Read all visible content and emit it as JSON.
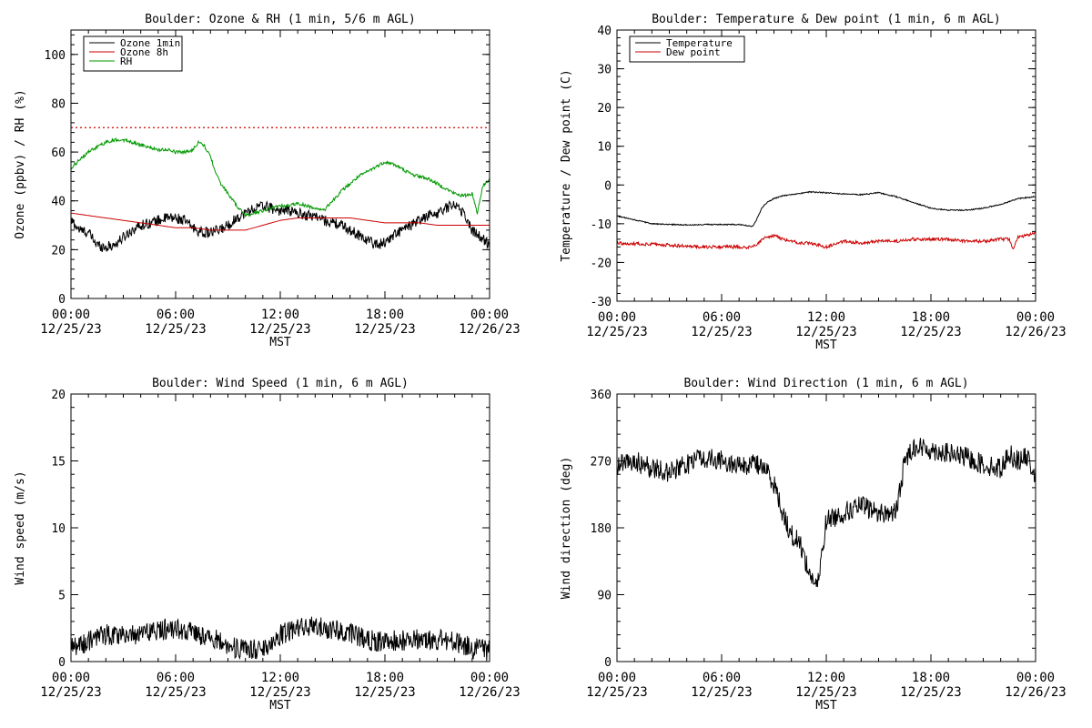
{
  "chart_data": [
    {
      "type": "line",
      "title": "Boulder: Ozone & RH (1 min, 5/6 m AGL)",
      "xlabel": "MST",
      "ylabel": "Ozone (ppbv) / RH (%)",
      "xlim": [
        0,
        24
      ],
      "ylim": [
        0,
        110
      ],
      "yticks": [
        0,
        20,
        40,
        60,
        80,
        100
      ],
      "xticks": [
        0,
        6,
        12,
        18,
        24
      ],
      "xtick_labels": [
        [
          "00:00",
          "12/25/23"
        ],
        [
          "06:00",
          "12/25/23"
        ],
        [
          "12:00",
          "12/25/23"
        ],
        [
          "18:00",
          "12/25/23"
        ],
        [
          "00:00",
          "12/26/23"
        ]
      ],
      "legend": {
        "placement": "top-left",
        "entries": [
          {
            "label": "Ozone 1min",
            "color": "#000000"
          },
          {
            "label": "Ozone 8h",
            "color": "#cc0000"
          },
          {
            "label": "RH",
            "color": "#009900"
          }
        ]
      },
      "reference_line": {
        "y": 70,
        "style": "dotted",
        "color": "#cc0000"
      },
      "series": [
        {
          "name": "Ozone 1min",
          "color": "#000000",
          "noise": 2.2,
          "x": [
            0,
            0.5,
            1,
            1.5,
            2,
            2.5,
            3,
            3.5,
            4,
            4.5,
            5,
            5.5,
            6,
            6.5,
            7,
            7.5,
            8,
            8.5,
            9,
            9.5,
            10,
            10.5,
            11,
            11.5,
            12,
            12.5,
            13,
            13.5,
            14,
            14.5,
            15,
            15.5,
            16,
            16.5,
            17,
            17.5,
            18,
            18.5,
            19,
            19.5,
            20,
            20.5,
            21,
            21.5,
            22,
            22.5,
            23,
            23.5,
            24
          ],
          "y": [
            32,
            28,
            27,
            22,
            21,
            22,
            25,
            28,
            30,
            31,
            32,
            33,
            33,
            32,
            29,
            27,
            27,
            28,
            30,
            33,
            35,
            37,
            38,
            37,
            36,
            36,
            35,
            34,
            34,
            32,
            31,
            30,
            28,
            26,
            24,
            22,
            23,
            26,
            28,
            30,
            32,
            34,
            35,
            37,
            39,
            35,
            28,
            25,
            22
          ]
        },
        {
          "name": "Ozone 8h",
          "color": "#cc0000",
          "noise": 0,
          "x": [
            0,
            1,
            2,
            3,
            4,
            5,
            6,
            7,
            8,
            9,
            10,
            11,
            12,
            13,
            14,
            15,
            16,
            17,
            18,
            19,
            20,
            21,
            22,
            23,
            24
          ],
          "y": [
            35,
            34,
            33,
            32,
            31,
            30,
            29,
            29,
            28,
            28,
            28,
            30,
            32,
            33,
            33,
            33,
            33,
            32,
            31,
            31,
            31,
            30,
            30,
            30,
            30
          ]
        },
        {
          "name": "RH",
          "color": "#009900",
          "noise": 0.7,
          "x": [
            0,
            0.5,
            1,
            1.5,
            2,
            2.5,
            3,
            3.5,
            4,
            4.5,
            5,
            5.5,
            6,
            6.5,
            7,
            7.3,
            7.6,
            8,
            8.5,
            9,
            9.5,
            10,
            10.5,
            11,
            11.5,
            12,
            12.5,
            13,
            13.5,
            14,
            14.5,
            15,
            15.5,
            16,
            16.5,
            17,
            17.5,
            18,
            18.5,
            19,
            19.5,
            20,
            20.5,
            21,
            21.5,
            22,
            22.5,
            23,
            23.3,
            23.6,
            24
          ],
          "y": [
            53,
            57,
            60,
            62,
            64,
            65,
            65,
            64,
            63,
            62,
            61,
            61,
            60,
            60,
            61,
            64,
            63,
            58,
            48,
            43,
            38,
            34,
            35,
            36,
            37,
            38,
            38,
            39,
            38,
            37,
            36,
            40,
            44,
            47,
            50,
            52,
            54,
            56,
            55,
            53,
            51,
            50,
            49,
            47,
            45,
            43,
            42,
            43,
            35,
            46,
            49
          ]
        }
      ]
    },
    {
      "type": "line",
      "title": "Boulder: Temperature & Dew point (1 min, 6 m AGL)",
      "xlabel": "MST",
      "ylabel": "Temperature / Dew point (C)",
      "xlim": [
        0,
        24
      ],
      "ylim": [
        -30,
        40
      ],
      "yticks": [
        -30,
        -20,
        -10,
        0,
        10,
        20,
        30,
        40
      ],
      "xticks": [
        0,
        6,
        12,
        18,
        24
      ],
      "xtick_labels": [
        [
          "00:00",
          "12/25/23"
        ],
        [
          "06:00",
          "12/25/23"
        ],
        [
          "12:00",
          "12/25/23"
        ],
        [
          "18:00",
          "12/25/23"
        ],
        [
          "00:00",
          "12/26/23"
        ]
      ],
      "legend": {
        "placement": "top-left",
        "entries": [
          {
            "label": "Temperature",
            "color": "#000000"
          },
          {
            "label": "Dew point",
            "color": "#cc0000"
          }
        ]
      },
      "series": [
        {
          "name": "Temperature",
          "color": "#000000",
          "noise": 0.15,
          "x": [
            0,
            0.5,
            1,
            1.5,
            2,
            3,
            4,
            5,
            6,
            7,
            7.5,
            7.8,
            8,
            8.3,
            8.6,
            9,
            9.5,
            10,
            10.5,
            11,
            12,
            13,
            14,
            15,
            16,
            17,
            18,
            19,
            20,
            21,
            22,
            23,
            24
          ],
          "y": [
            -8,
            -8.5,
            -9,
            -9.5,
            -10,
            -10.2,
            -10.3,
            -10.2,
            -10.2,
            -10.2,
            -10.5,
            -10.7,
            -9,
            -6,
            -4.5,
            -3.5,
            -2.8,
            -2.5,
            -2.2,
            -1.8,
            -2,
            -2.3,
            -2.5,
            -2,
            -3,
            -4.5,
            -6,
            -6.5,
            -6.5,
            -6,
            -5,
            -3.5,
            -3
          ]
        },
        {
          "name": "Dew point",
          "color": "#cc0000",
          "noise": 0.4,
          "x": [
            0,
            1,
            2,
            3,
            4,
            5,
            6,
            7,
            7.5,
            8,
            8.5,
            9,
            9.5,
            10,
            10.5,
            11,
            12,
            13,
            14,
            15,
            16,
            17,
            18,
            19,
            20,
            21,
            22,
            22.5,
            22.7,
            23,
            24
          ],
          "y": [
            -15,
            -15.2,
            -15.3,
            -15.5,
            -15.8,
            -16,
            -16,
            -16,
            -16.2,
            -15.5,
            -13.5,
            -13,
            -14,
            -14.5,
            -15,
            -15,
            -16,
            -14.5,
            -15,
            -14.5,
            -14.5,
            -14,
            -14,
            -14,
            -14.5,
            -14.5,
            -14,
            -14,
            -16.5,
            -13.5,
            -12.5
          ]
        }
      ]
    },
    {
      "type": "line",
      "title": "Boulder: Wind Speed (1 min, 6 m AGL)",
      "xlabel": "MST",
      "ylabel": "Wind speed (m/s)",
      "xlim": [
        0,
        24
      ],
      "ylim": [
        0,
        20
      ],
      "yticks": [
        0,
        5,
        10,
        15,
        20
      ],
      "xticks": [
        0,
        6,
        12,
        18,
        24
      ],
      "xtick_labels": [
        [
          "00:00",
          "12/25/23"
        ],
        [
          "06:00",
          "12/25/23"
        ],
        [
          "12:00",
          "12/25/23"
        ],
        [
          "18:00",
          "12/25/23"
        ],
        [
          "00:00",
          "12/26/23"
        ]
      ],
      "series": [
        {
          "name": "",
          "color": "#000000",
          "noise": 0.8,
          "x": [
            0,
            1,
            2,
            3,
            4,
            5,
            6,
            7,
            8,
            9,
            10,
            11,
            12,
            13,
            14,
            15,
            16,
            17,
            18,
            19,
            20,
            21,
            22,
            23,
            24
          ],
          "y": [
            1,
            1.5,
            2,
            2,
            2,
            2.3,
            2.5,
            2.2,
            1.8,
            1.2,
            0.8,
            1,
            2,
            2.5,
            2.6,
            2.4,
            2.2,
            1.6,
            1.5,
            1.6,
            1.7,
            1.6,
            1.5,
            1,
            0.8
          ]
        }
      ]
    },
    {
      "type": "line",
      "title": "Boulder: Wind Direction (1 min, 6 m AGL)",
      "xlabel": "MST",
      "ylabel": "Wind direction (deg)",
      "xlim": [
        0,
        24
      ],
      "ylim": [
        0,
        360
      ],
      "yticks": [
        0,
        90,
        180,
        270,
        360
      ],
      "xticks": [
        0,
        6,
        12,
        18,
        24
      ],
      "xtick_labels": [
        [
          "00:00",
          "12/25/23"
        ],
        [
          "06:00",
          "12/25/23"
        ],
        [
          "12:00",
          "12/25/23"
        ],
        [
          "18:00",
          "12/25/23"
        ],
        [
          "00:00",
          "12/26/23"
        ]
      ],
      "series": [
        {
          "name": "",
          "color": "#000000",
          "noise": 14,
          "x": [
            0,
            1,
            2,
            3,
            4,
            5,
            6,
            7,
            8,
            8.5,
            9,
            9.5,
            10,
            10.5,
            11,
            11.5,
            12,
            13,
            14,
            15,
            16,
            16.5,
            17,
            18,
            19,
            20,
            21,
            22,
            22.5,
            23,
            23.5,
            24
          ],
          "y": [
            265,
            270,
            260,
            255,
            265,
            275,
            270,
            265,
            265,
            260,
            240,
            200,
            170,
            160,
            120,
            100,
            190,
            200,
            210,
            200,
            200,
            270,
            290,
            285,
            280,
            275,
            265,
            260,
            280,
            270,
            275,
            250
          ]
        }
      ]
    }
  ]
}
